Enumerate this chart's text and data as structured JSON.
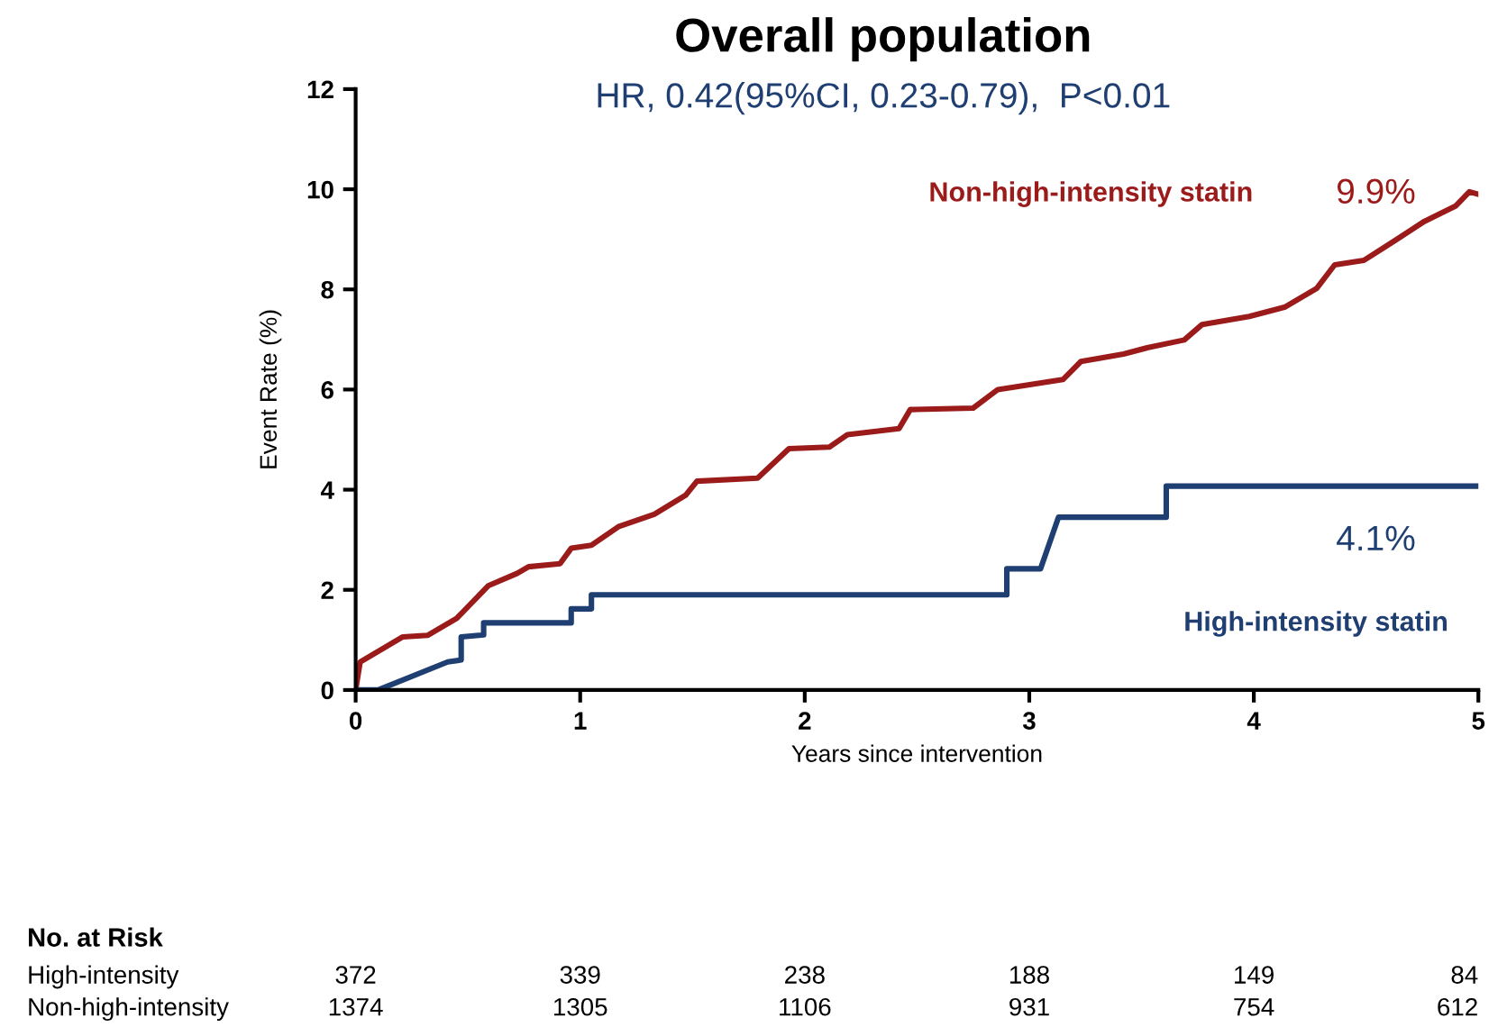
{
  "chart_data": {
    "type": "line",
    "title": "Overall population",
    "subtitle": "HR, 0.42(95%CI, 0.23-0.79),  P<0.01",
    "xlabel": "Years since intervention",
    "ylabel": "Event Rate (%)",
    "xlim": [
      0,
      5
    ],
    "ylim": [
      0,
      12
    ],
    "xticks": [
      0,
      1,
      2,
      3,
      4,
      5
    ],
    "yticks": [
      0,
      2,
      4,
      6,
      8,
      10,
      12
    ],
    "grid": false,
    "legend": false,
    "marker": "none",
    "line_style": "solid",
    "series": [
      {
        "name": "Non-high-intensity statin",
        "color": "#9b1b1b",
        "x": [
          0,
          0.02,
          0.21,
          0.32,
          0.45,
          0.59,
          0.72,
          0.77,
          0.91,
          0.96,
          1.05,
          1.17,
          1.33,
          1.47,
          1.52,
          1.79,
          1.93,
          2.11,
          2.19,
          2.42,
          2.47,
          2.75,
          2.86,
          3.15,
          3.23,
          3.42,
          3.53,
          3.69,
          3.77,
          3.98,
          4.14,
          4.28,
          4.36,
          4.49,
          4.62,
          4.76,
          4.9,
          4.96,
          5.0
        ],
        "values": [
          0,
          0.56,
          1.06,
          1.09,
          1.43,
          2.08,
          2.33,
          2.46,
          2.52,
          2.83,
          2.89,
          3.26,
          3.51,
          3.89,
          4.17,
          4.23,
          4.82,
          4.85,
          5.1,
          5.22,
          5.6,
          5.63,
          6.0,
          6.2,
          6.56,
          6.71,
          6.84,
          6.99,
          7.3,
          7.46,
          7.65,
          8.02,
          8.49,
          8.58,
          8.95,
          9.36,
          9.67,
          9.95,
          9.9
        ]
      },
      {
        "name": "High-intensity statin",
        "color": "#1f3f73",
        "x": [
          0,
          0.1,
          0.41,
          0.47,
          0.47,
          0.57,
          0.57,
          0.96,
          0.96,
          1.05,
          1.05,
          2.9,
          2.9,
          3.05,
          3.13,
          3.61,
          3.61,
          5.0
        ],
        "values": [
          0,
          0,
          0.56,
          0.6,
          1.06,
          1.1,
          1.34,
          1.34,
          1.62,
          1.62,
          1.9,
          1.9,
          2.42,
          2.42,
          3.45,
          3.45,
          4.07,
          4.07
        ]
      }
    ],
    "annotations": [
      {
        "text": "9.9%",
        "x": 5,
        "y": 9.9
      },
      {
        "text": "4.1%",
        "x": 5,
        "y": 4.07
      },
      "No. at Risk",
      "High-intensity",
      "372",
      "339",
      "238",
      "188",
      "149",
      "84",
      "Non-high-intensity",
      "1374",
      "1305",
      "1106",
      "931",
      "754",
      "612"
    ]
  }
}
